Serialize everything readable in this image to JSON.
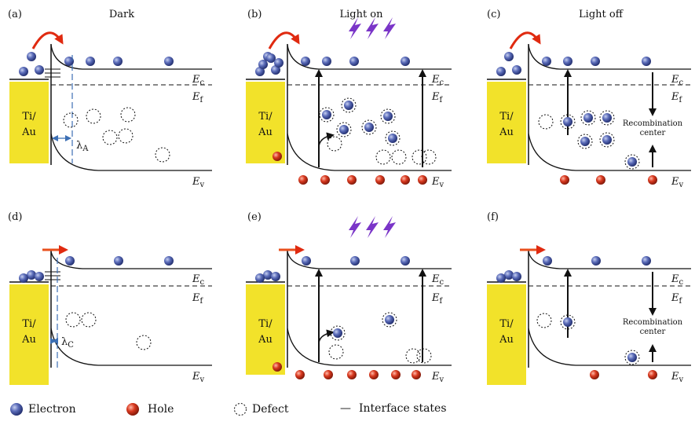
{
  "panels": [
    {
      "label": "(a)",
      "title": "Dark",
      "metal": [
        "Ti/",
        "Au"
      ],
      "lambda": "λ",
      "lambda_sub": "A"
    },
    {
      "label": "(b)",
      "title": "Light on",
      "metal": [
        "Ti/",
        "Au"
      ]
    },
    {
      "label": "(c)",
      "title": "Light off",
      "metal": [
        "Ti/",
        "Au"
      ],
      "recomb": [
        "Recombination",
        "center"
      ]
    },
    {
      "label": "(d)",
      "title": "",
      "metal": [
        "Ti/",
        "Au"
      ],
      "lambda": "λ",
      "lambda_sub": "C"
    },
    {
      "label": "(e)",
      "title": "",
      "metal": [
        "Ti/",
        "Au"
      ]
    },
    {
      "label": "(f)",
      "title": "",
      "metal": [
        "Ti/",
        "Au"
      ],
      "recomb": [
        "Recombination",
        "center"
      ]
    }
  ],
  "band": {
    "ec": "E",
    "ec_sub": "c",
    "ef": "E",
    "ef_sub": "f",
    "ev": "E",
    "ev_sub": "v"
  },
  "legend": {
    "electron": "Electron",
    "hole": "Hole",
    "defect": "Defect",
    "interface": "Interface states",
    "interface_mark": "—"
  },
  "colors": {
    "metal": "#f2e22a",
    "electron": "#3d4f9e",
    "hole": "#c8301e",
    "arrow_red": "#e02a10",
    "arrow_orange": "#e8501e",
    "photon": "#7a35c8",
    "lambda_line": "#3c6fb4"
  },
  "icons": {
    "electron": "electron-dot-icon",
    "hole": "hole-dot-icon",
    "defect": "defect-circle-icon",
    "photon": "lightning-icon"
  }
}
